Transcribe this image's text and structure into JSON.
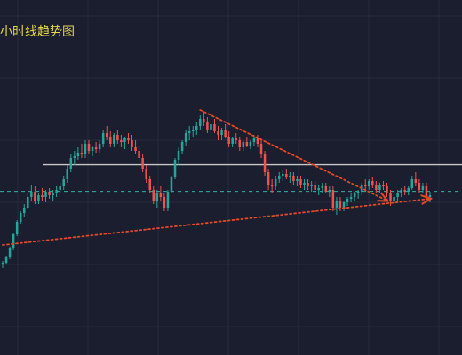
{
  "chart_data": {
    "type": "candlestick",
    "title": "小时线趋势图",
    "timeframe": "1H",
    "ylim": [
      0,
      100
    ],
    "grid": true,
    "colors": {
      "background": "#1b1e2e",
      "grid": "#262a3d",
      "up": "#26a69a",
      "down": "#ef5350",
      "resistance": "#c8c8c8",
      "mid_level": "#2fb3a3",
      "trendline": "#e04a28",
      "title": "#e6d84a"
    },
    "candles": [
      {
        "o": 10,
        "h": 12,
        "l": 8,
        "c": 11
      },
      {
        "o": 11,
        "h": 15,
        "l": 10,
        "c": 14
      },
      {
        "o": 14,
        "h": 20,
        "l": 13,
        "c": 19
      },
      {
        "o": 19,
        "h": 28,
        "l": 18,
        "c": 27
      },
      {
        "o": 27,
        "h": 35,
        "l": 26,
        "c": 34
      },
      {
        "o": 34,
        "h": 40,
        "l": 33,
        "c": 39
      },
      {
        "o": 39,
        "h": 44,
        "l": 37,
        "c": 42
      },
      {
        "o": 42,
        "h": 50,
        "l": 41,
        "c": 48
      },
      {
        "o": 48,
        "h": 55,
        "l": 46,
        "c": 51
      },
      {
        "o": 51,
        "h": 54,
        "l": 44,
        "c": 46
      },
      {
        "o": 46,
        "h": 50,
        "l": 44,
        "c": 49
      },
      {
        "o": 49,
        "h": 53,
        "l": 46,
        "c": 48
      },
      {
        "o": 48,
        "h": 52,
        "l": 45,
        "c": 51
      },
      {
        "o": 51,
        "h": 53,
        "l": 47,
        "c": 49
      },
      {
        "o": 49,
        "h": 52,
        "l": 46,
        "c": 50
      },
      {
        "o": 50,
        "h": 54,
        "l": 48,
        "c": 52
      },
      {
        "o": 52,
        "h": 56,
        "l": 50,
        "c": 54
      },
      {
        "o": 54,
        "h": 60,
        "l": 52,
        "c": 58
      },
      {
        "o": 58,
        "h": 66,
        "l": 56,
        "c": 64
      },
      {
        "o": 64,
        "h": 72,
        "l": 62,
        "c": 70
      },
      {
        "o": 70,
        "h": 74,
        "l": 66,
        "c": 71
      },
      {
        "o": 71,
        "h": 76,
        "l": 69,
        "c": 73
      },
      {
        "o": 73,
        "h": 78,
        "l": 70,
        "c": 72
      },
      {
        "o": 72,
        "h": 80,
        "l": 70,
        "c": 78
      },
      {
        "o": 78,
        "h": 80,
        "l": 72,
        "c": 74
      },
      {
        "o": 74,
        "h": 77,
        "l": 71,
        "c": 76
      },
      {
        "o": 76,
        "h": 79,
        "l": 73,
        "c": 75
      },
      {
        "o": 75,
        "h": 80,
        "l": 73,
        "c": 78
      },
      {
        "o": 78,
        "h": 86,
        "l": 76,
        "c": 84
      },
      {
        "o": 84,
        "h": 88,
        "l": 80,
        "c": 82
      },
      {
        "o": 82,
        "h": 85,
        "l": 76,
        "c": 78
      },
      {
        "o": 78,
        "h": 84,
        "l": 76,
        "c": 83
      },
      {
        "o": 83,
        "h": 86,
        "l": 78,
        "c": 80
      },
      {
        "o": 80,
        "h": 83,
        "l": 76,
        "c": 79
      },
      {
        "o": 79,
        "h": 82,
        "l": 75,
        "c": 81
      },
      {
        "o": 81,
        "h": 84,
        "l": 78,
        "c": 80
      },
      {
        "o": 80,
        "h": 83,
        "l": 74,
        "c": 76
      },
      {
        "o": 76,
        "h": 80,
        "l": 72,
        "c": 74
      },
      {
        "o": 74,
        "h": 77,
        "l": 68,
        "c": 70
      },
      {
        "o": 70,
        "h": 72,
        "l": 62,
        "c": 64
      },
      {
        "o": 64,
        "h": 66,
        "l": 56,
        "c": 58
      },
      {
        "o": 58,
        "h": 60,
        "l": 50,
        "c": 52
      },
      {
        "o": 52,
        "h": 54,
        "l": 44,
        "c": 46
      },
      {
        "o": 46,
        "h": 52,
        "l": 42,
        "c": 50
      },
      {
        "o": 50,
        "h": 54,
        "l": 46,
        "c": 48
      },
      {
        "o": 48,
        "h": 50,
        "l": 40,
        "c": 42
      },
      {
        "o": 42,
        "h": 52,
        "l": 40,
        "c": 51
      },
      {
        "o": 51,
        "h": 60,
        "l": 50,
        "c": 59
      },
      {
        "o": 59,
        "h": 70,
        "l": 58,
        "c": 69
      },
      {
        "o": 69,
        "h": 76,
        "l": 66,
        "c": 74
      },
      {
        "o": 74,
        "h": 80,
        "l": 72,
        "c": 79
      },
      {
        "o": 79,
        "h": 86,
        "l": 77,
        "c": 84
      },
      {
        "o": 84,
        "h": 88,
        "l": 80,
        "c": 85
      },
      {
        "o": 85,
        "h": 88,
        "l": 82,
        "c": 86
      },
      {
        "o": 86,
        "h": 90,
        "l": 83,
        "c": 88
      },
      {
        "o": 88,
        "h": 94,
        "l": 86,
        "c": 92
      },
      {
        "o": 92,
        "h": 96,
        "l": 88,
        "c": 90
      },
      {
        "o": 90,
        "h": 93,
        "l": 84,
        "c": 86
      },
      {
        "o": 86,
        "h": 90,
        "l": 82,
        "c": 89
      },
      {
        "o": 89,
        "h": 92,
        "l": 84,
        "c": 85
      },
      {
        "o": 85,
        "h": 88,
        "l": 80,
        "c": 83
      },
      {
        "o": 83,
        "h": 87,
        "l": 80,
        "c": 86
      },
      {
        "o": 86,
        "h": 89,
        "l": 81,
        "c": 82
      },
      {
        "o": 82,
        "h": 85,
        "l": 76,
        "c": 78
      },
      {
        "o": 78,
        "h": 82,
        "l": 76,
        "c": 81
      },
      {
        "o": 81,
        "h": 84,
        "l": 78,
        "c": 80
      },
      {
        "o": 80,
        "h": 82,
        "l": 74,
        "c": 76
      },
      {
        "o": 76,
        "h": 80,
        "l": 74,
        "c": 79
      },
      {
        "o": 79,
        "h": 82,
        "l": 76,
        "c": 77
      },
      {
        "o": 77,
        "h": 80,
        "l": 75,
        "c": 79
      },
      {
        "o": 79,
        "h": 83,
        "l": 77,
        "c": 81
      },
      {
        "o": 81,
        "h": 83,
        "l": 76,
        "c": 78
      },
      {
        "o": 78,
        "h": 80,
        "l": 70,
        "c": 72
      },
      {
        "o": 72,
        "h": 74,
        "l": 60,
        "c": 62
      },
      {
        "o": 62,
        "h": 64,
        "l": 52,
        "c": 55
      },
      {
        "o": 55,
        "h": 58,
        "l": 50,
        "c": 54
      },
      {
        "o": 54,
        "h": 60,
        "l": 52,
        "c": 58
      },
      {
        "o": 58,
        "h": 62,
        "l": 56,
        "c": 60
      },
      {
        "o": 60,
        "h": 63,
        "l": 57,
        "c": 61
      },
      {
        "o": 61,
        "h": 64,
        "l": 58,
        "c": 59
      },
      {
        "o": 59,
        "h": 62,
        "l": 56,
        "c": 60
      },
      {
        "o": 60,
        "h": 62,
        "l": 55,
        "c": 57
      },
      {
        "o": 57,
        "h": 60,
        "l": 54,
        "c": 58
      },
      {
        "o": 58,
        "h": 60,
        "l": 53,
        "c": 55
      },
      {
        "o": 55,
        "h": 58,
        "l": 52,
        "c": 56
      },
      {
        "o": 56,
        "h": 58,
        "l": 52,
        "c": 54
      },
      {
        "o": 54,
        "h": 57,
        "l": 51,
        "c": 55
      },
      {
        "o": 55,
        "h": 57,
        "l": 50,
        "c": 52
      },
      {
        "o": 52,
        "h": 55,
        "l": 49,
        "c": 53
      },
      {
        "o": 53,
        "h": 56,
        "l": 50,
        "c": 54
      },
      {
        "o": 54,
        "h": 56,
        "l": 50,
        "c": 51
      },
      {
        "o": 51,
        "h": 54,
        "l": 48,
        "c": 52
      },
      {
        "o": 52,
        "h": 54,
        "l": 40,
        "c": 42
      },
      {
        "o": 42,
        "h": 48,
        "l": 38,
        "c": 46
      },
      {
        "o": 46,
        "h": 48,
        "l": 40,
        "c": 42
      },
      {
        "o": 42,
        "h": 46,
        "l": 40,
        "c": 45
      },
      {
        "o": 45,
        "h": 48,
        "l": 43,
        "c": 47
      },
      {
        "o": 47,
        "h": 50,
        "l": 45,
        "c": 48
      },
      {
        "o": 48,
        "h": 51,
        "l": 46,
        "c": 50
      },
      {
        "o": 50,
        "h": 52,
        "l": 47,
        "c": 51
      },
      {
        "o": 51,
        "h": 56,
        "l": 49,
        "c": 55
      },
      {
        "o": 55,
        "h": 58,
        "l": 52,
        "c": 54
      },
      {
        "o": 54,
        "h": 58,
        "l": 52,
        "c": 57
      },
      {
        "o": 57,
        "h": 59,
        "l": 53,
        "c": 55
      },
      {
        "o": 55,
        "h": 57,
        "l": 50,
        "c": 52
      },
      {
        "o": 52,
        "h": 56,
        "l": 50,
        "c": 55
      },
      {
        "o": 55,
        "h": 57,
        "l": 52,
        "c": 54
      },
      {
        "o": 54,
        "h": 56,
        "l": 48,
        "c": 50
      },
      {
        "o": 50,
        "h": 52,
        "l": 43,
        "c": 46
      },
      {
        "o": 46,
        "h": 50,
        "l": 44,
        "c": 48
      },
      {
        "o": 48,
        "h": 52,
        "l": 46,
        "c": 50
      },
      {
        "o": 50,
        "h": 53,
        "l": 48,
        "c": 52
      },
      {
        "o": 52,
        "h": 54,
        "l": 49,
        "c": 51
      },
      {
        "o": 51,
        "h": 54,
        "l": 49,
        "c": 53
      },
      {
        "o": 53,
        "h": 60,
        "l": 52,
        "c": 58
      },
      {
        "o": 58,
        "h": 62,
        "l": 54,
        "c": 56
      },
      {
        "o": 56,
        "h": 58,
        "l": 50,
        "c": 52
      },
      {
        "o": 52,
        "h": 56,
        "l": 50,
        "c": 54
      },
      {
        "o": 54,
        "h": 56,
        "l": 47,
        "c": 48
      },
      {
        "o": 48,
        "h": 51,
        "l": 45,
        "c": 49
      }
    ],
    "resistance_level": 66.2,
    "mid_level": 51.2,
    "trendlines": [
      {
        "from": {
          "i": 0,
          "y": 21
        },
        "to": {
          "i": 119,
          "y": 47
        },
        "arrow": true
      },
      {
        "from": {
          "i": 55,
          "y": 97
        },
        "to": {
          "i": 107,
          "y": 46
        },
        "arrow": true
      }
    ]
  }
}
